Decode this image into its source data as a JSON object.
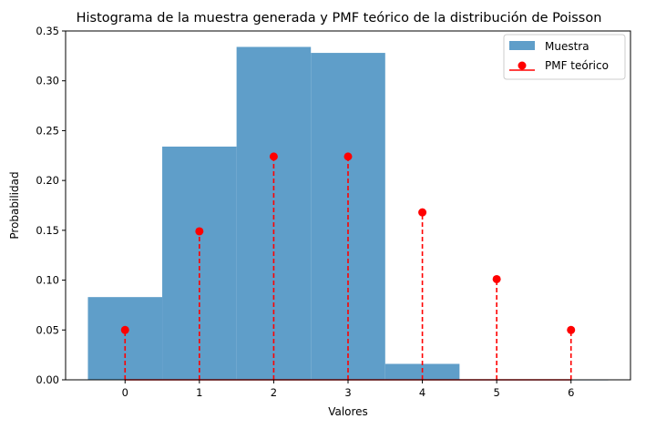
{
  "chart_data": {
    "type": "bar",
    "title": "Histograma de la muestra generada y PMF teórico de la distribución de Poisson",
    "xlabel": "Valores",
    "ylabel": "Probabilidad",
    "xlim": [
      -0.8,
      6.8
    ],
    "ylim": [
      0,
      0.35
    ],
    "x_ticks": [
      "0",
      "1",
      "2",
      "3",
      "4",
      "5",
      "6"
    ],
    "y_ticks": [
      "0.00",
      "0.05",
      "0.10",
      "0.15",
      "0.20",
      "0.25",
      "0.30",
      "0.35"
    ],
    "grid": false,
    "legend_position": "top-right",
    "series": [
      {
        "name": "Muestra",
        "kind": "histogram",
        "color": "#5f9ec9",
        "bins": [
          {
            "left": -0.5,
            "right": 0.5,
            "value": 0.083
          },
          {
            "left": 0.5,
            "right": 1.5,
            "value": 0.234
          },
          {
            "left": 1.5,
            "right": 2.5,
            "value": 0.334
          },
          {
            "left": 2.5,
            "right": 3.5,
            "value": 0.328
          },
          {
            "left": 3.5,
            "right": 4.5,
            "value": 0.016
          },
          {
            "left": 4.5,
            "right": 5.5,
            "value": 0.0
          },
          {
            "left": 5.5,
            "right": 6.5,
            "value": 0.0
          }
        ]
      },
      {
        "name": "PMF teórico",
        "kind": "stem",
        "color": "#ff0000",
        "x": [
          0,
          1,
          2,
          3,
          4,
          5,
          6
        ],
        "values": [
          0.05,
          0.149,
          0.224,
          0.224,
          0.168,
          0.101,
          0.05
        ]
      }
    ]
  }
}
